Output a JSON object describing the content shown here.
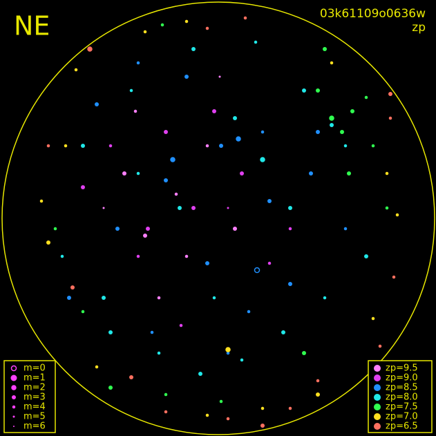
{
  "chart_data": {
    "type": "scatter",
    "direction": "NE",
    "title": "03k61109o0636w",
    "subtitle": "zp",
    "xlim": [
      0,
      631
    ],
    "ylim": [
      631,
      0
    ],
    "sizes": [
      {
        "value": 0,
        "label": "m=0"
      },
      {
        "value": 1,
        "label": "m=1"
      },
      {
        "value": 2,
        "label": "m=2"
      },
      {
        "value": 3,
        "label": "m=3"
      },
      {
        "value": 4,
        "label": "m=4"
      },
      {
        "value": 5,
        "label": "m=5"
      },
      {
        "value": 6,
        "label": "m=6"
      }
    ],
    "series": [
      {
        "name": "zp=9.5",
        "color": "#ff80ff",
        "x": [
          210,
          255,
          180,
          300,
          150,
          340,
          230,
          270,
          196,
          318
        ],
        "y": [
          290,
          350,
          380,
          420,
          330,
          300,
          200,
          260,
          470,
          520
        ],
        "m": [
          3,
          4,
          3,
          4,
          5,
          3,
          4,
          4,
          4,
          5
        ]
      },
      {
        "name": "zp=9.0",
        "color": "#e040f0",
        "x": [
          120,
          200,
          280,
          350,
          420,
          160,
          310,
          390,
          240,
          330,
          214,
          262
        ],
        "y": [
          360,
          260,
          330,
          380,
          300,
          420,
          470,
          250,
          440,
          330,
          300,
          160
        ],
        "m": [
          3,
          4,
          3,
          3,
          4,
          4,
          3,
          4,
          3,
          5,
          3,
          4
        ]
      },
      {
        "name": "zp=8.5",
        "color": "#2090ff",
        "x": [
          100,
          170,
          250,
          320,
          380,
          450,
          500,
          140,
          220,
          300,
          360,
          420,
          270,
          330,
          390,
          200,
          372,
          345,
          240,
          460
        ],
        "y": [
          200,
          300,
          400,
          420,
          440,
          380,
          300,
          480,
          150,
          250,
          180,
          220,
          520,
          120,
          340,
          540,
          240,
          430,
          370,
          440
        ],
        "m": [
          3,
          3,
          2,
          3,
          4,
          3,
          4,
          3,
          4,
          3,
          4,
          3,
          3,
          4,
          3,
          4,
          0,
          2,
          3,
          3
        ]
      },
      {
        "name": "zp=8.0",
        "color": "#20e8e8",
        "x": [
          90,
          150,
          230,
          290,
          350,
          410,
          470,
          530,
          120,
          190,
          280,
          370,
          440,
          500,
          260,
          340,
          200,
          420,
          310,
          160,
          380,
          480
        ],
        "y": [
          260,
          200,
          120,
          90,
          110,
          150,
          200,
          260,
          420,
          500,
          560,
          570,
          500,
          420,
          330,
          460,
          380,
          330,
          200,
          150,
          400,
          450
        ],
        "m": [
          4,
          3,
          4,
          3,
          4,
          3,
          4,
          3,
          3,
          4,
          3,
          4,
          3,
          4,
          3,
          3,
          4,
          3,
          4,
          3,
          2,
          3
        ]
      },
      {
        "name": "zp=7.5",
        "color": "#30ff50",
        "x": [
          440,
          480,
          510,
          530,
          495,
          540,
          460,
          120,
          80,
          160,
          240,
          320,
          560,
          505,
          470,
          235
        ],
        "y": [
          120,
          460,
          470,
          490,
          440,
          420,
          500,
          180,
          300,
          70,
          60,
          50,
          330,
          380,
          560,
          595
        ],
        "m": [
          3,
          2,
          3,
          4,
          3,
          4,
          3,
          4,
          4,
          3,
          4,
          4,
          4,
          3,
          3,
          4
        ]
      },
      {
        "name": "zp=7.0",
        "color": "#ffe020",
        "x": [
          70,
          95,
          60,
          140,
          300,
          380,
          460,
          540,
          575,
          330,
          110,
          270,
          480,
          560,
          210
        ],
        "y": [
          280,
          420,
          340,
          100,
          30,
          40,
          60,
          170,
          320,
          125,
          530,
          600,
          540,
          380,
          585
        ],
        "m": [
          3,
          4,
          4,
          4,
          4,
          4,
          3,
          4,
          4,
          2,
          4,
          4,
          4,
          4,
          4
        ]
      },
      {
        "name": "zp=6.5",
        "color": "#ff7060",
        "x": [
          240,
          330,
          380,
          420,
          460,
          550,
          570,
          565,
          105,
          70,
          190,
          300,
          355,
          565,
          130
        ],
        "y": [
          35,
          25,
          15,
          40,
          80,
          130,
          230,
          460,
          215,
          420,
          85,
          590,
          605,
          495,
          560
        ],
        "m": [
          4,
          4,
          3,
          4,
          4,
          4,
          4,
          4,
          3,
          4,
          3,
          4,
          4,
          3,
          2
        ]
      }
    ]
  }
}
